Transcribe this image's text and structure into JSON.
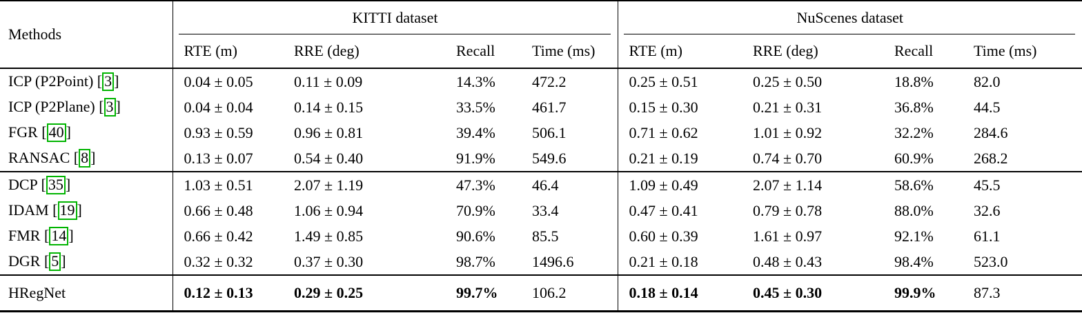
{
  "table": {
    "methods_header": "Methods",
    "group_headers": [
      {
        "label": "KITTI dataset"
      },
      {
        "label": "NuScenes dataset"
      }
    ],
    "sub_headers": [
      "RTE (m)",
      "RRE (deg)",
      "Recall",
      "Time (ms)"
    ],
    "groups": [
      {
        "name": "classical-methods",
        "rows": [
          {
            "method": "ICP (P2Point)",
            "cite": "3",
            "cells": [
              "0.04 ± 0.05",
              "0.11 ± 0.09",
              "14.3%",
              "472.2",
              "0.25 ± 0.51",
              "0.25 ± 0.50",
              "18.8%",
              "82.0"
            ]
          },
          {
            "method": "ICP (P2Plane)",
            "cite": "3",
            "cells": [
              "0.04 ± 0.04",
              "0.14 ± 0.15",
              "33.5%",
              "461.7",
              "0.15 ± 0.30",
              "0.21 ± 0.31",
              "36.8%",
              "44.5"
            ]
          },
          {
            "method": "FGR",
            "cite": "40",
            "cells": [
              "0.93 ± 0.59",
              "0.96 ± 0.81",
              "39.4%",
              "506.1",
              "0.71 ± 0.62",
              "1.01 ± 0.92",
              "32.2%",
              "284.6"
            ]
          },
          {
            "method": "RANSAC",
            "cite": "8",
            "cells": [
              "0.13 ± 0.07",
              "0.54 ± 0.40",
              "91.9%",
              "549.6",
              "0.21 ± 0.19",
              "0.74 ± 0.70",
              "60.9%",
              "268.2"
            ]
          }
        ]
      },
      {
        "name": "learning-methods",
        "rows": [
          {
            "method": "DCP",
            "cite": "35",
            "cells": [
              "1.03 ± 0.51",
              "2.07 ± 1.19",
              "47.3%",
              "46.4",
              "1.09 ± 0.49",
              "2.07 ± 1.14",
              "58.6%",
              "45.5"
            ]
          },
          {
            "method": "IDAM",
            "cite": "19",
            "cells": [
              "0.66 ± 0.48",
              "1.06 ± 0.94",
              "70.9%",
              "33.4",
              "0.47 ± 0.41",
              "0.79 ± 0.78",
              "88.0%",
              "32.6"
            ]
          },
          {
            "method": "FMR",
            "cite": "14",
            "cells": [
              "0.66 ± 0.42",
              "1.49 ± 0.85",
              "90.6%",
              "85.5",
              "0.60 ± 0.39",
              "1.61 ± 0.97",
              "92.1%",
              "61.1"
            ]
          },
          {
            "method": "DGR",
            "cite": "5",
            "cells": [
              "0.32 ± 0.32",
              "0.37 ± 0.30",
              "98.7%",
              "1496.6",
              "0.21 ± 0.18",
              "0.48 ± 0.43",
              "98.4%",
              "523.0"
            ]
          }
        ]
      },
      {
        "name": "proposed-method",
        "rows": [
          {
            "method": "HRegNet",
            "cite": null,
            "cells": [
              {
                "text": "0.12 ± 0.13",
                "bold": true
              },
              {
                "text": "0.29 ± 0.25",
                "bold": true
              },
              {
                "text": "99.7%",
                "bold": true
              },
              "106.2",
              {
                "text": "0.18 ± 0.14",
                "bold": true
              },
              {
                "text": "0.45 ± 0.30",
                "bold": true
              },
              {
                "text": "99.9%",
                "bold": true
              },
              "87.3"
            ]
          }
        ]
      }
    ]
  },
  "colors": {
    "citation_box_border": "#00b400",
    "text": "#000000",
    "background": "#ffffff",
    "rule": "#000000"
  }
}
